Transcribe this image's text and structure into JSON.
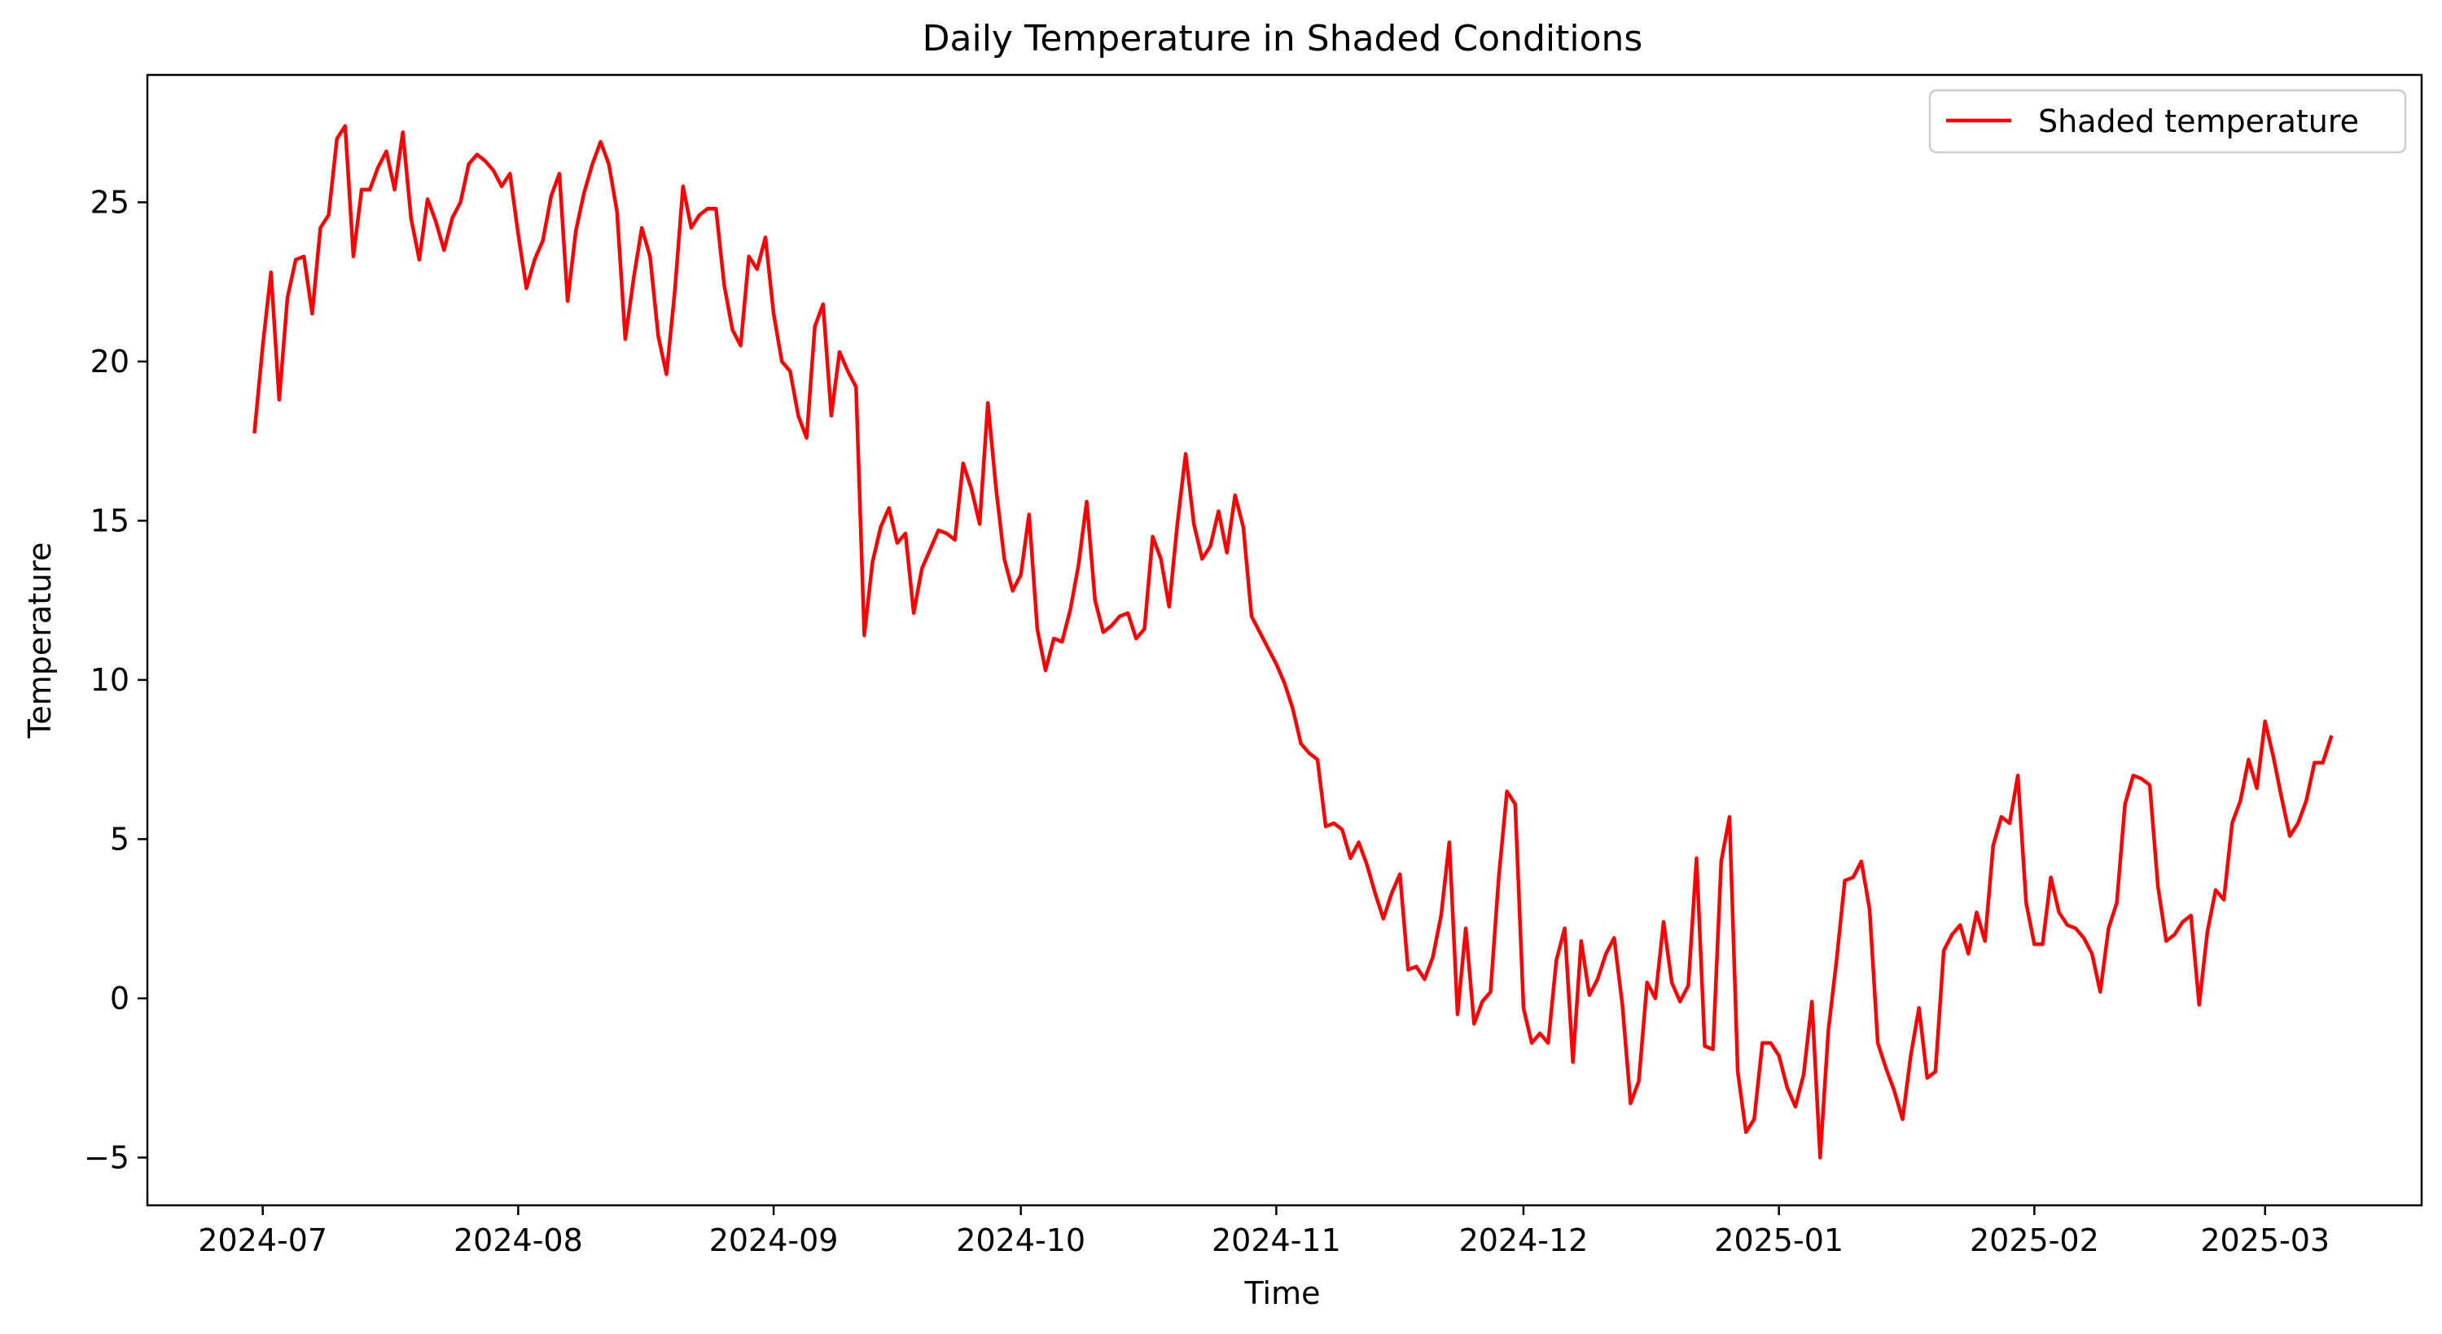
{
  "chart_data": {
    "type": "line",
    "title": "Daily Temperature in Shaded Conditions",
    "xlabel": "Time",
    "ylabel": "Temperature",
    "xlim": [
      "2024-06-17",
      "2025-03-20"
    ],
    "ylim": [
      -6.5,
      29
    ],
    "grid": false,
    "legend": "top-right",
    "x_ticks": [
      "2024-07",
      "2024-08",
      "2024-09",
      "2024-10",
      "2024-11",
      "2024-12",
      "2025-01",
      "2025-02",
      "2025-03"
    ],
    "y_ticks": [
      -5,
      0,
      5,
      10,
      15,
      20,
      25
    ],
    "y_tick_labels": [
      "−5",
      "0",
      "5",
      "10",
      "15",
      "20",
      "25"
    ],
    "series": [
      {
        "name": "Shaded temperature",
        "color": "#ff0000",
        "start_date": "2024-06-30",
        "step": "1 day",
        "values": [
          17.8,
          20.5,
          22.8,
          18.8,
          22.0,
          23.2,
          23.3,
          21.5,
          24.2,
          24.6,
          27.0,
          27.4,
          23.3,
          25.4,
          25.4,
          26.1,
          26.6,
          25.4,
          27.2,
          24.5,
          23.2,
          25.1,
          24.4,
          23.5,
          24.5,
          25.0,
          26.2,
          26.5,
          26.3,
          26.0,
          25.5,
          25.9,
          24.0,
          22.3,
          23.2,
          23.8,
          25.2,
          25.9,
          21.9,
          24.1,
          25.3,
          26.2,
          26.9,
          26.2,
          24.7,
          20.7,
          22.6,
          24.2,
          23.3,
          20.8,
          19.6,
          22.2,
          25.5,
          24.2,
          24.6,
          24.8,
          24.8,
          22.4,
          21.0,
          20.5,
          23.3,
          22.9,
          23.9,
          21.5,
          20.0,
          19.7,
          18.3,
          17.6,
          21.1,
          21.8,
          18.3,
          20.3,
          19.7,
          19.2,
          11.4,
          13.7,
          14.8,
          15.4,
          14.3,
          14.6,
          12.1,
          13.5,
          14.1,
          14.7,
          14.6,
          14.4,
          16.8,
          16.0,
          14.9,
          18.7,
          16.0,
          13.8,
          12.8,
          13.3,
          15.2,
          11.6,
          10.3,
          11.3,
          11.2,
          12.2,
          13.6,
          15.6,
          12.5,
          11.5,
          11.7,
          12.0,
          12.1,
          11.3,
          11.6,
          14.5,
          13.8,
          12.3,
          14.9,
          17.1,
          14.9,
          13.8,
          14.2,
          15.3,
          14.0,
          15.8,
          14.8,
          12.0,
          11.5,
          11.0,
          10.5,
          9.9,
          9.1,
          8.0,
          7.7,
          7.5,
          5.4,
          5.5,
          5.3,
          4.4,
          4.9,
          4.2,
          3.3,
          2.5,
          3.3,
          3.9,
          0.9,
          1.0,
          0.6,
          1.3,
          2.6,
          4.9,
          -0.5,
          2.2,
          -0.8,
          -0.1,
          0.2,
          3.8,
          6.5,
          6.1,
          -0.3,
          -1.4,
          -1.1,
          -1.4,
          1.2,
          2.2,
          -2.0,
          1.8,
          0.1,
          0.6,
          1.4,
          1.9,
          -0.2,
          -3.3,
          -2.6,
          0.5,
          0.0,
          2.4,
          0.5,
          -0.1,
          0.4,
          4.4,
          -1.5,
          -1.6,
          4.3,
          5.7,
          -2.3,
          -4.2,
          -3.8,
          -1.4,
          -1.4,
          -1.8,
          -2.8,
          -3.4,
          -2.4,
          -0.1,
          -5.0,
          -1.0,
          1.2,
          3.7,
          3.8,
          4.3,
          2.8,
          -1.4,
          -2.2,
          -2.9,
          -3.8,
          -1.8,
          -0.3,
          -2.5,
          -2.3,
          1.5,
          2.0,
          2.3,
          1.4,
          2.7,
          1.8,
          4.8,
          5.7,
          5.5,
          7.0,
          3.0,
          1.7,
          1.7,
          3.8,
          2.7,
          2.3,
          2.2,
          1.9,
          1.4,
          0.2,
          2.2,
          3.0,
          6.1,
          7.0,
          6.9,
          6.7,
          3.5,
          1.8,
          2.0,
          2.4,
          2.6,
          -0.2,
          2.1,
          3.4,
          3.1,
          5.5,
          6.2,
          7.5,
          6.6,
          8.7,
          7.6,
          6.3,
          5.1,
          5.5,
          6.2,
          7.4,
          7.4,
          8.2
        ]
      }
    ]
  }
}
